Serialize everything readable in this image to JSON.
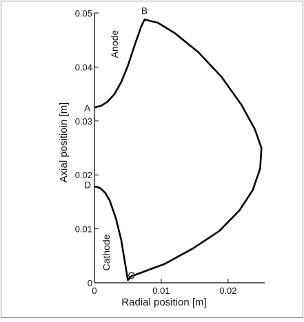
{
  "chart_data": {
    "type": "line",
    "xlabel": "Radial position [m]",
    "ylabel": "Axial positioin [m]",
    "xlim": [
      0,
      0.026
    ],
    "ylim": [
      0,
      0.05
    ],
    "x_ticks": [
      0,
      0.01,
      0.02
    ],
    "x_tick_labels": [
      "0",
      "0.01",
      "0.02"
    ],
    "y_ticks": [
      0,
      0.01,
      0.02,
      0.03,
      0.04,
      0.05
    ],
    "y_tick_labels": [
      "0",
      "0.01",
      "0.02",
      "0.03",
      "0.04",
      "0.05"
    ],
    "grid": false,
    "series": [
      {
        "values_description_free": true,
        "x": [
          0,
          0.001,
          0.002,
          0.003,
          0.004,
          0.005,
          0.006,
          0.007,
          0.0075,
          0.0095,
          0.012,
          0.0155,
          0.019,
          0.022,
          0.024,
          0.025,
          0.0248,
          0.0237,
          0.0217,
          0.0187,
          0.0148,
          0.0105,
          0.0055,
          0.005,
          0.0046,
          0.004,
          0.0032,
          0.0023,
          0.0016,
          0.0009,
          0.0004,
          0
        ],
        "y": [
          0.0325,
          0.0328,
          0.0336,
          0.035,
          0.0372,
          0.0402,
          0.044,
          0.0475,
          0.0488,
          0.0482,
          0.0463,
          0.0428,
          0.0382,
          0.033,
          0.0285,
          0.025,
          0.0212,
          0.0172,
          0.0134,
          0.0096,
          0.0064,
          0.0035,
          0.0012,
          0.0005,
          0.0035,
          0.008,
          0.012,
          0.0152,
          0.0167,
          0.0175,
          0.0178,
          0.0178
        ]
      }
    ],
    "points": [
      {
        "label": "A",
        "x": 0,
        "y": 0.0325
      },
      {
        "label": "B",
        "x": 0.0075,
        "y": 0.0488
      },
      {
        "label": "C",
        "x": 0.005,
        "y": 0.0005
      },
      {
        "label": "D",
        "x": 0,
        "y": 0.0178
      }
    ],
    "annotations": [
      {
        "text": "Anode"
      },
      {
        "text": "Cathode"
      }
    ]
  }
}
